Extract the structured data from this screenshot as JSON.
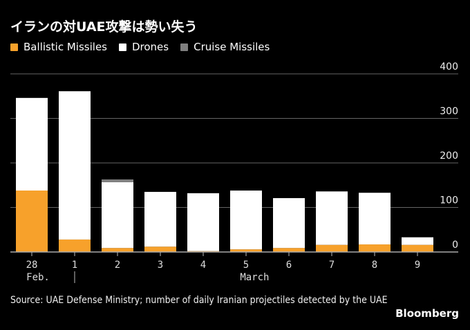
{
  "chart_data": {
    "type": "bar",
    "stacked": true,
    "title": "イランの対UAE攻撃は勢い失う",
    "categories": [
      "28",
      "1",
      "2",
      "3",
      "4",
      "5",
      "6",
      "7",
      "8",
      "9"
    ],
    "month_labels": [
      "Feb.",
      "March"
    ],
    "series": [
      {
        "name": "Ballistic Missiles",
        "color": "#F7A12B",
        "values": [
          138,
          28,
          9,
          12,
          2,
          6,
          9,
          16,
          17,
          16
        ]
      },
      {
        "name": "Drones",
        "color": "#FFFFFF",
        "values": [
          208,
          333,
          148,
          123,
          130,
          132,
          112,
          120,
          116,
          17
        ]
      },
      {
        "name": "Cruise Missiles",
        "color": "#808080",
        "values": [
          0,
          0,
          6,
          0,
          0,
          0,
          0,
          0,
          0,
          0
        ]
      }
    ],
    "y_ticks": [
      0,
      100,
      200,
      300,
      400
    ],
    "ylim": [
      0,
      400
    ],
    "xlabel": "",
    "ylabel": "",
    "grid": true,
    "legend_position": "top-left",
    "source": "Source: UAE Defense Ministry; number of daily Iranian projectiles detected by the UAE",
    "brand": "Bloomberg"
  }
}
